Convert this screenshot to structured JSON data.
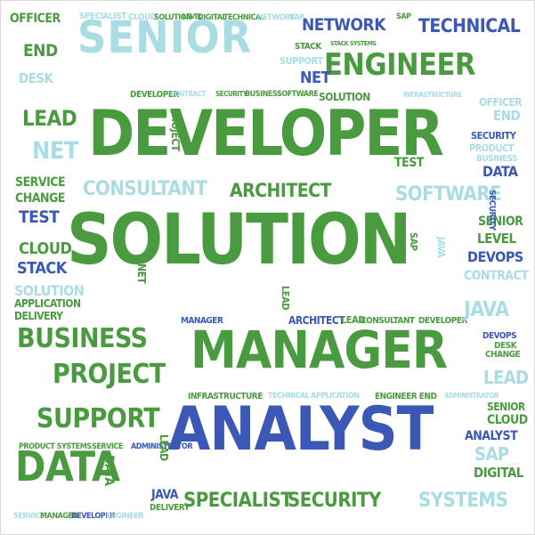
{
  "words": [
    {
      "text": "OFFICER",
      "color": "#4a9b3f"
    },
    {
      "text": "SPECIALIST",
      "color": "#a9dce3"
    },
    {
      "text": "CLOUD",
      "color": "#a9dce3"
    },
    {
      "text": "SOLUTION",
      "color": "#4a9b3f"
    },
    {
      "text": "LEVEL",
      "color": "#4a9b3f"
    },
    {
      "text": "DIGITAL",
      "color": "#4a9b3f"
    },
    {
      "text": "TECHNICAL",
      "color": "#4a9b3f"
    },
    {
      "text": "NETWORK",
      "color": "#a9dce3"
    },
    {
      "text": "SAP",
      "color": "#a9dce3"
    },
    {
      "text": "SENIOR",
      "color": "#a9dce3"
    },
    {
      "text": "NETWORK",
      "color": "#3b58b6"
    },
    {
      "text": "SAP",
      "color": "#4a9b3f"
    },
    {
      "text": "TECHNICAL",
      "color": "#3b58b6"
    },
    {
      "text": "END",
      "color": "#4a9b3f"
    },
    {
      "text": "STACK",
      "color": "#4a9b3f"
    },
    {
      "text": "STACK SYSTEMS",
      "color": "#4a9b3f"
    },
    {
      "text": "ENGINEER",
      "color": "#4a9b3f"
    },
    {
      "text": "DESK",
      "color": "#a9dce3"
    },
    {
      "text": "SUPPORT",
      "color": "#a9dce3"
    },
    {
      "text": "NET",
      "color": "#3b58b6"
    },
    {
      "text": "DEVELOPER",
      "color": "#4a9b3f"
    },
    {
      "text": "CONTRACT",
      "color": "#a9dce3"
    },
    {
      "text": "SECURITY",
      "color": "#4a9b3f"
    },
    {
      "text": "BUSINESS",
      "color": "#4a9b3f"
    },
    {
      "text": "SOFTWARE",
      "color": "#4a9b3f"
    },
    {
      "text": "SOLUTION",
      "color": "#4a9b3f"
    },
    {
      "text": "INFRASTRUCTURE",
      "color": "#a9dce3"
    },
    {
      "text": "LEAD",
      "color": "#4a9b3f"
    },
    {
      "text": "DEVELOPER",
      "color": "#4a9b3f"
    },
    {
      "text": "OFFICER",
      "color": "#a9dce3"
    },
    {
      "text": "END",
      "color": "#a9dce3"
    },
    {
      "text": "SECURITY",
      "color": "#3b58b6"
    },
    {
      "text": "PRODUCT",
      "color": "#a9dce3"
    },
    {
      "text": "BUSINESS",
      "color": "#a9dce3"
    },
    {
      "text": "DATA",
      "color": "#3b58b6"
    },
    {
      "text": "NET",
      "color": "#a9dce3"
    },
    {
      "text": "TEST",
      "color": "#4a9b3f"
    },
    {
      "text": "SERVICE",
      "color": "#4a9b3f"
    },
    {
      "text": "CHANGE",
      "color": "#4a9b3f"
    },
    {
      "text": "CONSULTANT",
      "color": "#a9dce3"
    },
    {
      "text": "ARCHITECT",
      "color": "#4a9b3f"
    },
    {
      "text": "SOFTWARE",
      "color": "#a9dce3"
    },
    {
      "text": "TEST",
      "color": "#3b58b6"
    },
    {
      "text": "SENIOR",
      "color": "#4a9b3f"
    },
    {
      "text": "LEVEL",
      "color": "#4a9b3f"
    },
    {
      "text": "CLOUD",
      "color": "#4a9b3f"
    },
    {
      "text": "STACK",
      "color": "#3b58b6"
    },
    {
      "text": "SOLUTION",
      "color": "#4a9b3f"
    },
    {
      "text": "DEVOPS",
      "color": "#3b58b6"
    },
    {
      "text": "CONTRACT",
      "color": "#a9dce3"
    },
    {
      "text": "SOLUTION",
      "color": "#a9dce3"
    },
    {
      "text": "APPLICATION",
      "color": "#4a9b3f"
    },
    {
      "text": "DELIVERY",
      "color": "#4a9b3f"
    },
    {
      "text": "MANAGER",
      "color": "#3b58b6"
    },
    {
      "text": "ARCHITECT",
      "color": "#3b58b6"
    },
    {
      "text": "LEAD",
      "color": "#4a9b3f"
    },
    {
      "text": "CONSULTANT",
      "color": "#4a9b3f"
    },
    {
      "text": "DEVELOPER",
      "color": "#4a9b3f"
    },
    {
      "text": "JAVA",
      "color": "#a9dce3"
    },
    {
      "text": "BUSINESS",
      "color": "#4a9b3f"
    },
    {
      "text": "MANAGER",
      "color": "#4a9b3f"
    },
    {
      "text": "DEVOPS",
      "color": "#3b58b6"
    },
    {
      "text": "DESK",
      "color": "#4a9b3f"
    },
    {
      "text": "CHANGE",
      "color": "#4a9b3f"
    },
    {
      "text": "PROJECT",
      "color": "#4a9b3f"
    },
    {
      "text": "LEAD",
      "color": "#a9dce3"
    },
    {
      "text": "INFRASTRUCTURE",
      "color": "#4a9b3f"
    },
    {
      "text": "TECHNICAL",
      "color": "#a9dce3"
    },
    {
      "text": "APPLICATION",
      "color": "#a9dce3"
    },
    {
      "text": "ENGINEER END",
      "color": "#4a9b3f"
    },
    {
      "text": "ADMINISTRATOR",
      "color": "#a9dce3"
    },
    {
      "text": "SUPPORT",
      "color": "#4a9b3f"
    },
    {
      "text": "ANALYST",
      "color": "#3b58b6"
    },
    {
      "text": "SENIOR",
      "color": "#4a9b3f"
    },
    {
      "text": "CLOUD",
      "color": "#4a9b3f"
    },
    {
      "text": "ANALYST",
      "color": "#3b58b6"
    },
    {
      "text": "SAP",
      "color": "#a9dce3"
    },
    {
      "text": "DATA",
      "color": "#4a9b3f"
    },
    {
      "text": "PRODUCT SYSTEMS",
      "color": "#4a9b3f"
    },
    {
      "text": "SERVICE",
      "color": "#4a9b3f"
    },
    {
      "text": "ADMINISTRATOR",
      "color": "#3b58b6"
    },
    {
      "text": "DIGITAL",
      "color": "#4a9b3f"
    },
    {
      "text": "JAVA",
      "color": "#3b58b6"
    },
    {
      "text": "DELIVERY",
      "color": "#4a9b3f"
    },
    {
      "text": "SPECIALIST",
      "color": "#4a9b3f"
    },
    {
      "text": "SECURITY",
      "color": "#4a9b3f"
    },
    {
      "text": "SYSTEMS",
      "color": "#a9dce3"
    },
    {
      "text": "SERVICE",
      "color": "#a9dce3"
    },
    {
      "text": "MANAGER",
      "color": "#4a9b3f"
    },
    {
      "text": "DEVELOPER",
      "color": "#3b58b6"
    },
    {
      "text": "ENGINEER",
      "color": "#a9dce3"
    },
    {
      "text": "DATA",
      "color": "#4a9b3f"
    },
    {
      "text": "PROJECT",
      "color": "#4a9b3f"
    },
    {
      "text": "SAP",
      "color": "#4a9b3f"
    },
    {
      "text": "LEAD",
      "color": "#4a9b3f"
    },
    {
      "text": "JAVA",
      "color": "#a9dce3"
    },
    {
      "text": "NET",
      "color": "#4a9b3f"
    },
    {
      "text": "SECURITY",
      "color": "#3b58b6"
    },
    {
      "text": "LEAD",
      "color": "#4a9b3f"
    }
  ]
}
